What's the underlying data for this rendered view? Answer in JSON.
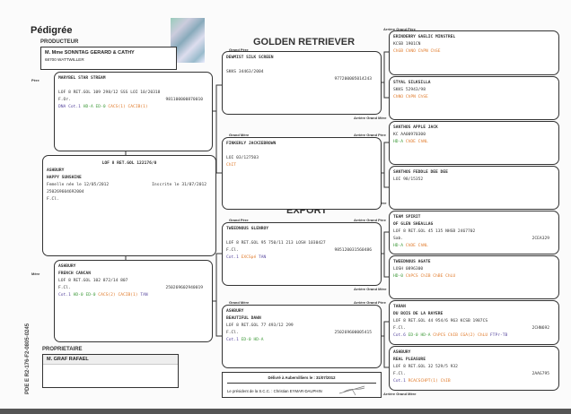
{
  "title": "Pédigrée",
  "breed": "GOLDEN RETRIEVER",
  "export": "EXPORT",
  "producer": {
    "label": "PRODUCTEUR",
    "name": "M. Mme SONNTAG GERARD & CATHY",
    "city": "68700 WATTWILLER"
  },
  "owner": {
    "label": "PROPRIETAIRE",
    "name": "M. GRAF RAFAEL"
  },
  "labels": {
    "pere": "Père",
    "mere": "Mère",
    "grand_pere": "Grand Père",
    "grand_mere": "Grand Mère",
    "arriere_grand_pere": "Arrière Grand Père",
    "arriere_grand_mere": "Arrière Grand Mère"
  },
  "document_code": "PDE E   R2-176-F2-0805-0245",
  "colors": {
    "green": "#3f9a3a",
    "orange": "#e07a2a",
    "purple": "#5a4aa0",
    "text": "#333333"
  },
  "delivered": {
    "line1": "Délivré à Aubervilliers le : 31/07/2012",
    "line2": "Le président de la S.C.C. : Christian EYMAR-DAUPHIN"
  },
  "boxes": {
    "dog": {
      "lines": [
        {
          "text": "LOF 8 RET.GOL 122176/0",
          "center": true,
          "bold": true
        },
        {
          "text": "ASHBURY",
          "bold": true
        },
        {
          "text": "HAPPY SUNSHINE",
          "bold": true
        },
        {
          "text": "Femelle née le 12/05/2012",
          "right": "Inscrite le 31/07/2012"
        },
        {
          "text": "250269604692004"
        },
        {
          "text": "F.Cl."
        }
      ]
    },
    "father": {
      "lines": [
        {
          "text": "MARYBEL STAR STREAM",
          "bold": true
        },
        {
          "text": ""
        },
        {
          "text": "LOF 8 RET.GOL 109 298/12 SSS LOI 10/20318"
        },
        {
          "text": "F.Or.",
          "right": "981100000870010"
        },
        {
          "segments": [
            {
              "text": "DNA ",
              "color": "purple"
            },
            {
              "text": "Cot.1 ",
              "color": "purple"
            },
            {
              "text": "HD-A ",
              "color": "green"
            },
            {
              "text": "ED-0 ",
              "color": "green"
            },
            {
              "text": "CACS(1) ",
              "color": "orange"
            },
            {
              "text": "CACIB(1)",
              "color": "orange"
            }
          ]
        }
      ]
    },
    "mother": {
      "lines": [
        {
          "text": "ASHBURY",
          "bold": true
        },
        {
          "text": "FRENCH CANCAN",
          "bold": true
        },
        {
          "text": "LOF 8 RET.GOL 102 872/14 807"
        },
        {
          "text": "F.Cl.",
          "right": "250269602940019"
        },
        {
          "segments": [
            {
              "text": "Cot.1 ",
              "color": "purple"
            },
            {
              "text": "HD-0 ",
              "color": "green"
            },
            {
              "text": "ED-0 ",
              "color": "green"
            },
            {
              "text": "CACS(2) ",
              "color": "orange"
            },
            {
              "text": "CACIB(1) ",
              "color": "orange"
            },
            {
              "text": "TAN",
              "color": "purple"
            }
          ]
        }
      ]
    },
    "gp1": {
      "lines": [
        {
          "text": "DEWMIST SILK SCREEN",
          "bold": true
        },
        {
          "text": ""
        },
        {
          "text": "SKKS 34463/2004"
        },
        {
          "text": "",
          "right": "977200005014243"
        }
      ]
    },
    "gm1": {
      "lines": [
        {
          "text": "FINKERLY JACKIEBROWN",
          "bold": true
        },
        {
          "text": ""
        },
        {
          "text": "LOI 03/127503"
        },
        {
          "segments": [
            {
              "text": "ChIT",
              "color": "orange"
            }
          ]
        }
      ]
    },
    "gp2": {
      "lines": [
        {
          "text": "TWEEDNOUS GLENROY",
          "bold": true
        },
        {
          "text": ""
        },
        {
          "text": "LOF 8 RET.GOL 95 750/11 213 LOSH 1030427"
        },
        {
          "text": "F.Cl.",
          "right": "985120031560486"
        },
        {
          "segments": [
            {
              "text": "Cot.1 ",
              "color": "purple"
            },
            {
              "text": "EXCSpé ",
              "color": "orange"
            },
            {
              "text": "TAN",
              "color": "purple"
            }
          ]
        }
      ]
    },
    "gm2": {
      "lines": [
        {
          "text": "ASHBURY",
          "bold": true
        },
        {
          "text": "BEAUTIFUL DAWN",
          "bold": true
        },
        {
          "text": "LOF 8 RET.GOL 77 493/12 299"
        },
        {
          "text": "F.Cl.",
          "right": "250269600005415"
        },
        {
          "segments": [
            {
              "text": "Cot.1 ",
              "color": "purple"
            },
            {
              "text": "ED-0 ",
              "color": "green"
            },
            {
              "text": "HD-A",
              "color": "green"
            }
          ]
        }
      ]
    },
    "ag1": {
      "lines": [
        {
          "text": "ERINDERRY GAELIC MINSTREL",
          "bold": true
        },
        {
          "text": "KCSB 1901CN"
        },
        {
          "segments": [
            {
              "text": "ChGB ChNO ChPN ChSE",
              "color": "orange"
            }
          ]
        }
      ]
    },
    "ag2": {
      "lines": [
        {
          "text": "STYAL SILKSILLA",
          "bold": true
        },
        {
          "text": "SKKS 52943/98"
        },
        {
          "segments": [
            {
              "text": "ChNO ChPN ChSE",
              "color": "orange"
            }
          ]
        }
      ]
    },
    "ag3": {
      "lines": [
        {
          "text": "SANTHOS APPLE JACK",
          "bold": true
        },
        {
          "text": "KC AA00970300"
        },
        {
          "segments": [
            {
              "text": "HD-A ",
              "color": "green"
            },
            {
              "text": "ChDE ChNL",
              "color": "orange"
            }
          ]
        }
      ]
    },
    "ag4": {
      "lines": [
        {
          "text": "SANTHOS FEDDLE DEE DEE",
          "bold": true
        },
        {
          "text": "LOI 98/15352"
        }
      ]
    },
    "ag5": {
      "lines": [
        {
          "text": "TEAM SPIRIT",
          "bold": true
        },
        {
          "text": "OF GLEN SHEALLAG",
          "bold": true
        },
        {
          "text": "LOF 8 RET.GOL 45 135 NHSB 2467702"
        },
        {
          "text": "Sab.",
          "right": "2CEA329"
        },
        {
          "segments": [
            {
              "text": "HD-A ",
              "color": "green"
            },
            {
              "text": "ChDE ChNL",
              "color": "orange"
            }
          ]
        }
      ]
    },
    "ag6": {
      "lines": [
        {
          "text": "TWEEDNOUS AGATE",
          "bold": true
        },
        {
          "text": "LOSH 0896300"
        },
        {
          "segments": [
            {
              "text": "HD-0 ",
              "color": "green"
            },
            {
              "text": "ChPCS ChIB ChBE ChLU",
              "color": "orange"
            }
          ]
        }
      ]
    },
    "ag7": {
      "lines": [
        {
          "text": "TARAN",
          "bold": true
        },
        {
          "text": "DU BOIS DE LA RAYERE",
          "bold": true
        },
        {
          "text": "LOF 8 RET.GOL 44 954/6 963 KCSB 1987CS"
        },
        {
          "text": "F.Cl.",
          "right": "2CHN692"
        },
        {
          "segments": [
            {
              "text": "Cot.6 ",
              "color": "purple"
            },
            {
              "text": "ED-0 HD-A ",
              "color": "green"
            },
            {
              "text": "ChPCS ChIB CGA(2) ChLU ",
              "color": "orange"
            },
            {
              "text": "FTPr-TB",
              "color": "purple"
            }
          ]
        }
      ]
    },
    "ag8": {
      "lines": [
        {
          "text": "ASHBURY",
          "bold": true
        },
        {
          "text": "REAL PLEASURE",
          "bold": true
        },
        {
          "text": "LOF 8 RET.GOL 32 529/5 932"
        },
        {
          "text": "F.Cl.",
          "right": "2AAG795"
        },
        {
          "segments": [
            {
              "text": "Cot.1 ",
              "color": "purple"
            },
            {
              "text": "RCACSCHPT(1) ChIB",
              "color": "orange"
            }
          ]
        }
      ]
    }
  }
}
